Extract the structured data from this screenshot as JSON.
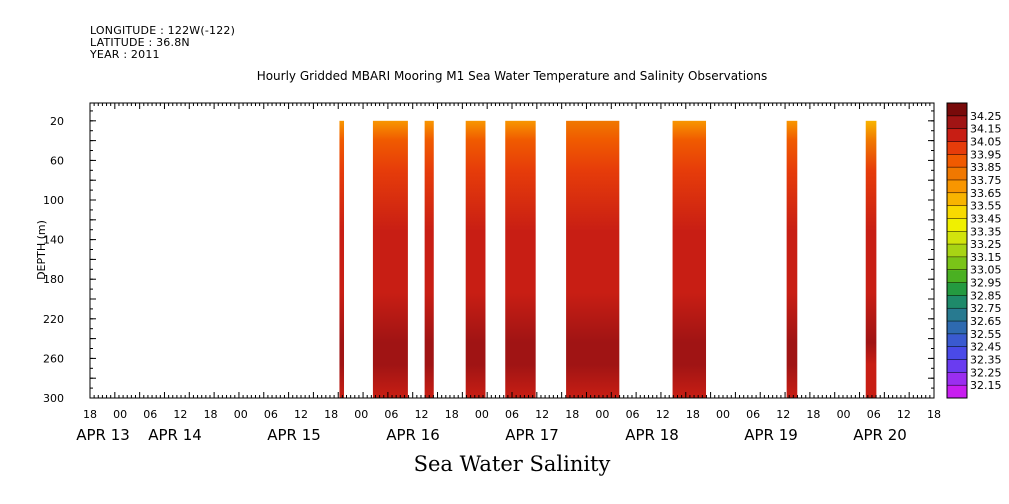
{
  "header": {
    "longitude": "LONGITUDE : 122W(-122)",
    "latitude": "LATITUDE : 36.8N",
    "year": "YEAR : 2011",
    "title": "Hourly Gridded MBARI Mooring M1 Sea Water Temperature and Salinity Observations"
  },
  "footer": {
    "subtitle": "Sea Water Salinity"
  },
  "chart_data": {
    "type": "heatmap",
    "title": "Hourly Gridded MBARI Mooring M1 Sea Water Temperature and Salinity Observations",
    "xlabel": "",
    "ylabel": "DEPTH (m)",
    "x_range_hours": [
      18,
      222
    ],
    "x_reference": "hours from APR 13 00:00, 2011",
    "xlim": [
      "APR 13 18:00",
      "APR 21 06:00"
    ],
    "ylim": [
      300,
      2
    ],
    "y_ticks": [
      20,
      60,
      100,
      140,
      180,
      220,
      260,
      300
    ],
    "x_tick_labels": [
      "18",
      "00",
      "06",
      "12",
      "18",
      "00",
      "06",
      "12",
      "18",
      "00",
      "06",
      "12",
      "18",
      "00",
      "06",
      "12",
      "18",
      "00",
      "06",
      "12",
      "18",
      "00",
      "06",
      "12",
      "18",
      "00",
      "06",
      "12",
      "18"
    ],
    "x_tick_hours": [
      18,
      24,
      30,
      36,
      42,
      48,
      54,
      60,
      66,
      72,
      78,
      84,
      90,
      96,
      102,
      108,
      114,
      120,
      126,
      132,
      138,
      144,
      150,
      156,
      162,
      168,
      174,
      180,
      186
    ],
    "day_labels": [
      {
        "label": "APR 13",
        "hour": 24
      },
      {
        "label": "APR 14",
        "hour": 42
      },
      {
        "label": "APR 15",
        "hour": 72
      },
      {
        "label": "APR 16",
        "hour": 102
      },
      {
        "label": "APR 17",
        "hour": 132
      },
      {
        "label": "APR 18",
        "hour": 162
      },
      {
        "label": "APR 19",
        "hour": 192
      },
      {
        "label": "APR 20",
        "hour": 219
      }
    ],
    "colorbar": {
      "levels": [
        32.15,
        32.25,
        32.35,
        32.45,
        32.55,
        32.65,
        32.75,
        32.85,
        32.95,
        33.05,
        33.15,
        33.25,
        33.35,
        33.45,
        33.55,
        33.65,
        33.75,
        33.85,
        33.95,
        34.05,
        34.15,
        34.25
      ],
      "colors": [
        "#c81ef0",
        "#9b2ef0",
        "#6a3cf0",
        "#4a4ae8",
        "#3a5ad0",
        "#2e6ab0",
        "#287a90",
        "#1e8a6a",
        "#249a40",
        "#4ab022",
        "#7ac418",
        "#a8d414",
        "#d2e40c",
        "#f0f000",
        "#f8da00",
        "#f8b400",
        "#f89600",
        "#f07800",
        "#f05a00",
        "#e63c0a",
        "#c81e14",
        "#a01414",
        "#780a0a"
      ]
    },
    "data_blocks": [
      {
        "x_start": 100.0,
        "x_end": 101.5,
        "surface": 33.7,
        "mid": 34.05,
        "deep": 34.2
      },
      {
        "x_start": 111.0,
        "x_end": 122.5,
        "surface": 33.72,
        "mid": 34.02,
        "deep": 34.2
      },
      {
        "x_start": 128.0,
        "x_end": 131.0,
        "surface": 33.7,
        "mid": 34.05,
        "deep": 34.2
      },
      {
        "x_start": 141.5,
        "x_end": 148.0,
        "surface": 33.72,
        "mid": 34.03,
        "deep": 34.2
      },
      {
        "x_start": 154.5,
        "x_end": 164.5,
        "surface": 33.72,
        "mid": 34.05,
        "deep": 34.21
      },
      {
        "x_start": 174.5,
        "x_end": 192.0,
        "surface": 33.75,
        "mid": 34.03,
        "deep": 34.21
      },
      {
        "x_start": 209.5,
        "x_end": 220.5,
        "surface": 33.72,
        "mid": 34.03,
        "deep": 34.2
      },
      {
        "x_start": 247.0,
        "x_end": 250.5,
        "surface": 33.72,
        "mid": 34.05,
        "deep": 34.21
      },
      {
        "x_start": 273.0,
        "x_end": 276.5,
        "surface": 33.6,
        "mid": 34.02,
        "deep": 34.18
      }
    ]
  }
}
